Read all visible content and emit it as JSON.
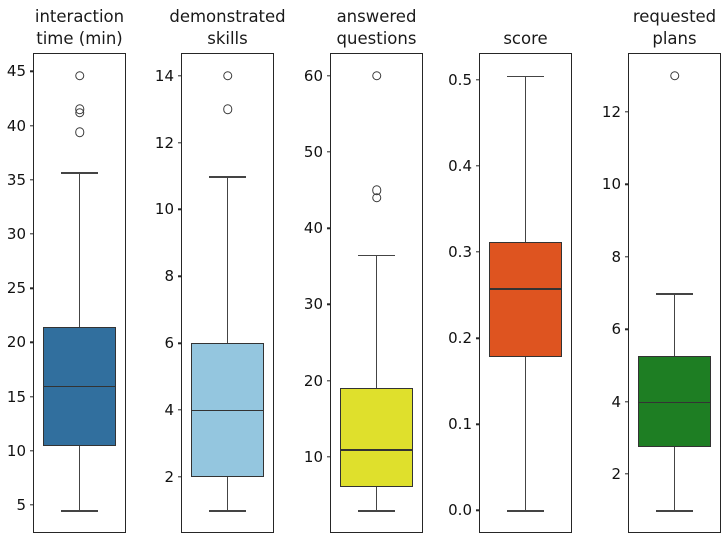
{
  "figure": {
    "background": "#ffffff",
    "frame_color": "#262626",
    "line_color": "#333333",
    "whisker_color": "#444444"
  },
  "chart_data": [
    {
      "type": "box",
      "title": "interaction\ntime (min)",
      "ylim": [
        2.5,
        46.6
      ],
      "yticks": [
        5,
        10,
        15,
        20,
        25,
        30,
        35,
        40,
        45
      ],
      "ytick_labels": [
        "5",
        "10",
        "15",
        "20",
        "25",
        "30",
        "35",
        "40",
        "45"
      ],
      "box": {
        "whislo": 4.5,
        "q1": 10.4,
        "med": 16.0,
        "q3": 21.4,
        "whishi": 35.7,
        "outliers": [
          39.4,
          41.2,
          41.5,
          44.6
        ]
      },
      "color": "#316F9E",
      "grid": false,
      "legend": null
    },
    {
      "type": "box",
      "title": "demonstrated\nskills",
      "ylim": [
        0.35,
        14.65
      ],
      "yticks": [
        2,
        4,
        6,
        8,
        10,
        12,
        14
      ],
      "ytick_labels": [
        "2",
        "4",
        "6",
        "8",
        "10",
        "12",
        "14"
      ],
      "box": {
        "whislo": 1,
        "q1": 2,
        "med": 4,
        "q3": 6,
        "whishi": 11,
        "outliers": [
          13,
          14
        ]
      },
      "color": "#94C6DF",
      "grid": false,
      "legend": null
    },
    {
      "type": "box",
      "title": "answered\nquestions",
      "ylim": [
        0.15,
        62.85
      ],
      "yticks": [
        10,
        20,
        30,
        40,
        50,
        60
      ],
      "ytick_labels": [
        "10",
        "20",
        "30",
        "40",
        "50",
        "60"
      ],
      "box": {
        "whislo": 3,
        "q1": 6,
        "med": 11,
        "q3": 19,
        "whishi": 36.5,
        "outliers": [
          44,
          45,
          60
        ]
      },
      "color": "#DFE02C",
      "grid": false,
      "legend": null
    },
    {
      "type": "box",
      "title": "score",
      "ylim": [
        -0.025,
        0.53
      ],
      "yticks": [
        0.0,
        0.1,
        0.2,
        0.3,
        0.4,
        0.5
      ],
      "ytick_labels": [
        "0.0",
        "0.1",
        "0.2",
        "0.3",
        "0.4",
        "0.5"
      ],
      "box": {
        "whislo": 0.0,
        "q1": 0.178,
        "med": 0.258,
        "q3": 0.312,
        "whishi": 0.505,
        "outliers": []
      },
      "color": "#DE5420",
      "grid": false,
      "legend": null
    },
    {
      "type": "box",
      "title": "requested\nplans",
      "ylim": [
        0.4,
        13.6
      ],
      "yticks": [
        2,
        4,
        6,
        8,
        10,
        12
      ],
      "ytick_labels": [
        "2",
        "4",
        "6",
        "8",
        "10",
        "12"
      ],
      "box": {
        "whislo": 1,
        "q1": 2.75,
        "med": 4,
        "q3": 5.25,
        "whishi": 7,
        "outliers": [
          13
        ]
      },
      "color": "#1E7E23",
      "grid": false,
      "legend": null
    }
  ]
}
